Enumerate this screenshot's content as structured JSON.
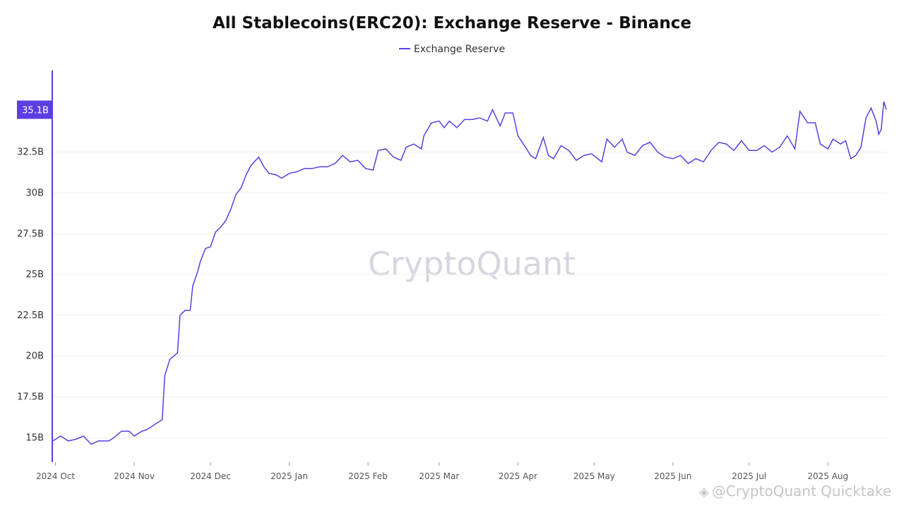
{
  "chart_data": {
    "type": "line",
    "title": "All Stablecoins(ERC20): Exchange Reserve - Binance",
    "ylabel": "",
    "xlabel": "",
    "ylim": [
      13.5,
      37.5
    ],
    "y_ticks": [
      {
        "value": 15,
        "label": "15B"
      },
      {
        "value": 17.5,
        "label": "17.5B"
      },
      {
        "value": 20,
        "label": "20B"
      },
      {
        "value": 22.5,
        "label": "22.5B"
      },
      {
        "value": 25,
        "label": "25B"
      },
      {
        "value": 27.5,
        "label": "27.5B"
      },
      {
        "value": 30,
        "label": "30B"
      },
      {
        "value": 32.5,
        "label": "32.5B"
      }
    ],
    "x_ticks": [
      "2024 Oct",
      "2024 Nov",
      "2024 Dec",
      "2025 Jan",
      "2025 Feb",
      "2025 Mar",
      "2025 Apr",
      "2025 May",
      "2025 Jun",
      "2025 Jul",
      "2025 Aug"
    ],
    "x_start": "2024-09-30",
    "x_end": "2025-08-24",
    "last_value_label": "35.1B",
    "legend_position": "top-center",
    "grid": "horizontal",
    "series": [
      {
        "name": "Exchange Reserve",
        "color": "#5b3fe0",
        "points": [
          [
            "2024-09-30",
            14.8
          ],
          [
            "2024-10-03",
            15.1
          ],
          [
            "2024-10-06",
            14.8
          ],
          [
            "2024-10-09",
            14.9
          ],
          [
            "2024-10-12",
            15.1
          ],
          [
            "2024-10-15",
            14.6
          ],
          [
            "2024-10-18",
            14.8
          ],
          [
            "2024-10-22",
            14.8
          ],
          [
            "2024-10-24",
            15.0
          ],
          [
            "2024-10-27",
            15.4
          ],
          [
            "2024-10-30",
            15.4
          ],
          [
            "2024-11-01",
            15.1
          ],
          [
            "2024-11-04",
            15.4
          ],
          [
            "2024-11-06",
            15.5
          ],
          [
            "2024-11-08",
            15.7
          ],
          [
            "2024-11-10",
            15.9
          ],
          [
            "2024-11-12",
            16.1
          ],
          [
            "2024-11-13",
            18.8
          ],
          [
            "2024-11-15",
            19.8
          ],
          [
            "2024-11-18",
            20.2
          ],
          [
            "2024-11-19",
            22.5
          ],
          [
            "2024-11-21",
            22.8
          ],
          [
            "2024-11-23",
            22.8
          ],
          [
            "2024-11-24",
            24.3
          ],
          [
            "2024-11-26",
            25.2
          ],
          [
            "2024-11-27",
            25.8
          ],
          [
            "2024-11-29",
            26.6
          ],
          [
            "2024-12-01",
            26.7
          ],
          [
            "2024-12-03",
            27.6
          ],
          [
            "2024-12-05",
            27.9
          ],
          [
            "2024-12-07",
            28.3
          ],
          [
            "2024-12-09",
            29.0
          ],
          [
            "2024-12-11",
            29.9
          ],
          [
            "2024-12-13",
            30.3
          ],
          [
            "2024-12-15",
            31.1
          ],
          [
            "2024-12-17",
            31.7
          ],
          [
            "2024-12-20",
            32.2
          ],
          [
            "2024-12-22",
            31.6
          ],
          [
            "2024-12-24",
            31.2
          ],
          [
            "2024-12-27",
            31.1
          ],
          [
            "2024-12-29",
            30.9
          ],
          [
            "2025-01-01",
            31.2
          ],
          [
            "2025-01-04",
            31.3
          ],
          [
            "2025-01-07",
            31.5
          ],
          [
            "2025-01-10",
            31.5
          ],
          [
            "2025-01-13",
            31.6
          ],
          [
            "2025-01-16",
            31.6
          ],
          [
            "2025-01-19",
            31.8
          ],
          [
            "2025-01-22",
            32.3
          ],
          [
            "2025-01-25",
            31.9
          ],
          [
            "2025-01-28",
            32.0
          ],
          [
            "2025-01-31",
            31.5
          ],
          [
            "2025-02-03",
            31.4
          ],
          [
            "2025-02-05",
            32.6
          ],
          [
            "2025-02-08",
            32.7
          ],
          [
            "2025-02-11",
            32.2
          ],
          [
            "2025-02-14",
            32.0
          ],
          [
            "2025-02-16",
            32.8
          ],
          [
            "2025-02-19",
            33.0
          ],
          [
            "2025-02-22",
            32.7
          ],
          [
            "2025-02-23",
            33.5
          ],
          [
            "2025-02-26",
            34.3
          ],
          [
            "2025-03-01",
            34.4
          ],
          [
            "2025-03-03",
            34.0
          ],
          [
            "2025-03-05",
            34.4
          ],
          [
            "2025-03-08",
            34.0
          ],
          [
            "2025-03-11",
            34.5
          ],
          [
            "2025-03-14",
            34.5
          ],
          [
            "2025-03-17",
            34.6
          ],
          [
            "2025-03-20",
            34.4
          ],
          [
            "2025-03-22",
            35.1
          ],
          [
            "2025-03-25",
            34.1
          ],
          [
            "2025-03-27",
            34.9
          ],
          [
            "2025-03-30",
            34.9
          ],
          [
            "2025-04-01",
            33.5
          ],
          [
            "2025-04-04",
            32.8
          ],
          [
            "2025-04-06",
            32.3
          ],
          [
            "2025-04-08",
            32.1
          ],
          [
            "2025-04-11",
            33.4
          ],
          [
            "2025-04-13",
            32.3
          ],
          [
            "2025-04-15",
            32.1
          ],
          [
            "2025-04-18",
            32.9
          ],
          [
            "2025-04-21",
            32.6
          ],
          [
            "2025-04-24",
            32.0
          ],
          [
            "2025-04-27",
            32.3
          ],
          [
            "2025-04-30",
            32.4
          ],
          [
            "2025-05-04",
            31.9
          ],
          [
            "2025-05-06",
            33.3
          ],
          [
            "2025-05-09",
            32.8
          ],
          [
            "2025-05-12",
            33.3
          ],
          [
            "2025-05-14",
            32.5
          ],
          [
            "2025-05-17",
            32.3
          ],
          [
            "2025-05-20",
            32.9
          ],
          [
            "2025-05-23",
            33.1
          ],
          [
            "2025-05-26",
            32.5
          ],
          [
            "2025-05-29",
            32.2
          ],
          [
            "2025-06-01",
            32.1
          ],
          [
            "2025-06-04",
            32.3
          ],
          [
            "2025-06-07",
            31.8
          ],
          [
            "2025-06-10",
            32.1
          ],
          [
            "2025-06-13",
            31.9
          ],
          [
            "2025-06-16",
            32.6
          ],
          [
            "2025-06-19",
            33.1
          ],
          [
            "2025-06-22",
            33.0
          ],
          [
            "2025-06-25",
            32.6
          ],
          [
            "2025-06-28",
            33.2
          ],
          [
            "2025-07-01",
            32.6
          ],
          [
            "2025-07-04",
            32.6
          ],
          [
            "2025-07-07",
            32.9
          ],
          [
            "2025-07-10",
            32.5
          ],
          [
            "2025-07-13",
            32.8
          ],
          [
            "2025-07-16",
            33.5
          ],
          [
            "2025-07-19",
            32.7
          ],
          [
            "2025-07-21",
            35.0
          ],
          [
            "2025-07-24",
            34.3
          ],
          [
            "2025-07-27",
            34.3
          ],
          [
            "2025-07-29",
            33.0
          ],
          [
            "2025-08-01",
            32.7
          ],
          [
            "2025-08-03",
            33.3
          ],
          [
            "2025-08-06",
            33.0
          ],
          [
            "2025-08-08",
            33.2
          ],
          [
            "2025-08-10",
            32.1
          ],
          [
            "2025-08-12",
            32.3
          ],
          [
            "2025-08-14",
            32.8
          ],
          [
            "2025-08-16",
            34.6
          ],
          [
            "2025-08-18",
            35.2
          ],
          [
            "2025-08-20",
            34.4
          ],
          [
            "2025-08-21",
            33.6
          ],
          [
            "2025-08-22",
            33.9
          ],
          [
            "2025-08-23",
            35.6
          ],
          [
            "2025-08-24",
            35.1
          ]
        ]
      }
    ]
  },
  "watermark": "CryptoQuant",
  "credit": "@CryptoQuant Quicktake"
}
